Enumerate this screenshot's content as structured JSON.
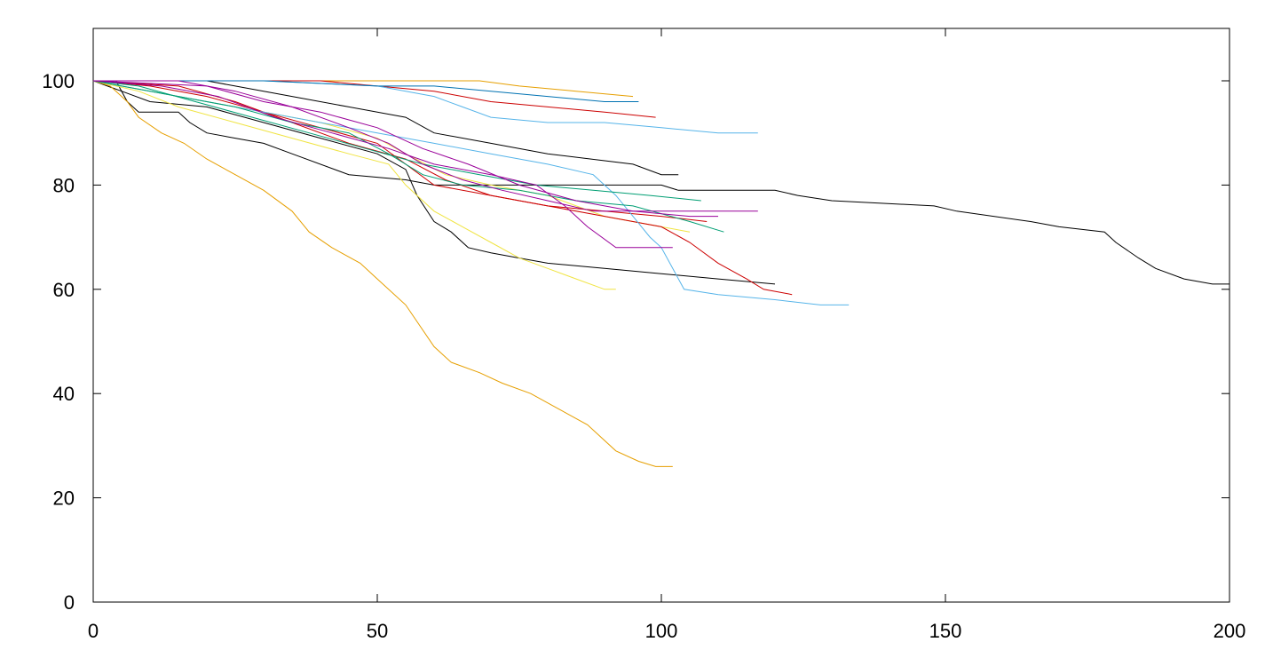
{
  "chart_data": {
    "type": "line",
    "title": "",
    "xlabel": "",
    "ylabel": "",
    "xlim": [
      0,
      200
    ],
    "ylim": [
      0,
      110
    ],
    "x_ticks": [
      "0",
      "50",
      "100",
      "150",
      "200"
    ],
    "x_tick_values": [
      0,
      50,
      100,
      150,
      200
    ],
    "y_ticks": [
      "0",
      "20",
      "40",
      "60",
      "80",
      "100"
    ],
    "y_tick_values": [
      0,
      20,
      40,
      60,
      80,
      100
    ],
    "grid": false,
    "legend": "none",
    "series": [
      {
        "color": "#000000",
        "points": [
          [
            0,
            100
          ],
          [
            4,
            100
          ],
          [
            6,
            96
          ],
          [
            8,
            94
          ],
          [
            15,
            94
          ],
          [
            17,
            92
          ],
          [
            20,
            90
          ],
          [
            25,
            89
          ],
          [
            30,
            88
          ],
          [
            35,
            86
          ],
          [
            45,
            82
          ],
          [
            55,
            81
          ],
          [
            60,
            80
          ],
          [
            75,
            80
          ],
          [
            80,
            80
          ],
          [
            95,
            80
          ],
          [
            100,
            80
          ],
          [
            103,
            79
          ],
          [
            120,
            79
          ],
          [
            124,
            78
          ],
          [
            130,
            77
          ],
          [
            148,
            76
          ],
          [
            152,
            75
          ],
          [
            165,
            73
          ],
          [
            170,
            72
          ],
          [
            178,
            71
          ],
          [
            180,
            69
          ],
          [
            184,
            66
          ],
          [
            187,
            64
          ],
          [
            192,
            62
          ],
          [
            197,
            61
          ],
          [
            200,
            61
          ]
        ]
      },
      {
        "color": "#000000",
        "points": [
          [
            0,
            100
          ],
          [
            5,
            98
          ],
          [
            10,
            96
          ],
          [
            20,
            95
          ],
          [
            30,
            92
          ],
          [
            40,
            89
          ],
          [
            50,
            86
          ],
          [
            55,
            83
          ],
          [
            57,
            78
          ],
          [
            60,
            73
          ],
          [
            63,
            71
          ],
          [
            66,
            68
          ],
          [
            70,
            67
          ],
          [
            75,
            66
          ],
          [
            80,
            65
          ],
          [
            90,
            64
          ],
          [
            100,
            63
          ],
          [
            110,
            62
          ],
          [
            120,
            61
          ]
        ]
      },
      {
        "color": "#000000",
        "points": [
          [
            0,
            100
          ],
          [
            20,
            100
          ],
          [
            25,
            99
          ],
          [
            35,
            97
          ],
          [
            45,
            95
          ],
          [
            55,
            93
          ],
          [
            60,
            90
          ],
          [
            70,
            88
          ],
          [
            80,
            86
          ],
          [
            95,
            84
          ],
          [
            100,
            82
          ],
          [
            103,
            82
          ]
        ]
      },
      {
        "color": "#e69f00",
        "points": [
          [
            0,
            100
          ],
          [
            3,
            99
          ],
          [
            6,
            96
          ],
          [
            8,
            93
          ],
          [
            12,
            90
          ],
          [
            16,
            88
          ],
          [
            20,
            85
          ],
          [
            25,
            82
          ],
          [
            30,
            79
          ],
          [
            35,
            75
          ],
          [
            38,
            71
          ],
          [
            42,
            68
          ],
          [
            47,
            65
          ],
          [
            50,
            62
          ],
          [
            55,
            57
          ],
          [
            60,
            49
          ],
          [
            63,
            46
          ],
          [
            68,
            44
          ],
          [
            72,
            42
          ],
          [
            77,
            40
          ],
          [
            82,
            37
          ],
          [
            87,
            34
          ],
          [
            92,
            29
          ],
          [
            96,
            27
          ],
          [
            99,
            26
          ],
          [
            102,
            26
          ]
        ]
      },
      {
        "color": "#e69f00",
        "points": [
          [
            0,
            100
          ],
          [
            30,
            100
          ],
          [
            50,
            100
          ],
          [
            60,
            100
          ],
          [
            68,
            100
          ],
          [
            75,
            99
          ],
          [
            85,
            98
          ],
          [
            95,
            97
          ]
        ]
      },
      {
        "color": "#f0e442",
        "points": [
          [
            0,
            100
          ],
          [
            8,
            98
          ],
          [
            15,
            95
          ],
          [
            25,
            92
          ],
          [
            35,
            89
          ],
          [
            45,
            86
          ],
          [
            52,
            84
          ],
          [
            55,
            80
          ],
          [
            60,
            75
          ],
          [
            65,
            72
          ],
          [
            70,
            69
          ],
          [
            75,
            66
          ],
          [
            80,
            64
          ],
          [
            85,
            62
          ],
          [
            90,
            60
          ],
          [
            92,
            60
          ]
        ]
      },
      {
        "color": "#f0e442",
        "points": [
          [
            0,
            100
          ],
          [
            10,
            98
          ],
          [
            20,
            96
          ],
          [
            30,
            94
          ],
          [
            40,
            92
          ],
          [
            50,
            89
          ],
          [
            55,
            86
          ],
          [
            62,
            82
          ],
          [
            70,
            80
          ],
          [
            80,
            78
          ],
          [
            90,
            74
          ],
          [
            100,
            72
          ],
          [
            105,
            71
          ]
        ]
      },
      {
        "color": "#cc0000",
        "points": [
          [
            0,
            100
          ],
          [
            10,
            99
          ],
          [
            20,
            97
          ],
          [
            30,
            94
          ],
          [
            40,
            91
          ],
          [
            50,
            88
          ],
          [
            55,
            84
          ],
          [
            60,
            80
          ],
          [
            70,
            78
          ],
          [
            80,
            76
          ],
          [
            90,
            74
          ],
          [
            100,
            72
          ],
          [
            105,
            69
          ],
          [
            110,
            65
          ],
          [
            115,
            62
          ],
          [
            118,
            60
          ],
          [
            123,
            59
          ]
        ]
      },
      {
        "color": "#cc0000",
        "points": [
          [
            0,
            100
          ],
          [
            20,
            100
          ],
          [
            40,
            100
          ],
          [
            50,
            99
          ],
          [
            60,
            98
          ],
          [
            70,
            96
          ],
          [
            80,
            95
          ],
          [
            90,
            94
          ],
          [
            99,
            93
          ]
        ]
      },
      {
        "color": "#cc0000",
        "points": [
          [
            0,
            100
          ],
          [
            15,
            99
          ],
          [
            25,
            96
          ],
          [
            35,
            92
          ],
          [
            45,
            88
          ],
          [
            55,
            85
          ],
          [
            62,
            81
          ],
          [
            70,
            78
          ],
          [
            80,
            76
          ],
          [
            90,
            75
          ],
          [
            100,
            74
          ],
          [
            108,
            73
          ]
        ]
      },
      {
        "color": "#56b4e9",
        "points": [
          [
            0,
            100
          ],
          [
            30,
            100
          ],
          [
            50,
            99
          ],
          [
            55,
            98
          ],
          [
            60,
            97
          ],
          [
            65,
            95
          ],
          [
            70,
            93
          ],
          [
            80,
            92
          ],
          [
            90,
            92
          ],
          [
            100,
            91
          ],
          [
            110,
            90
          ],
          [
            117,
            90
          ]
        ]
      },
      {
        "color": "#56b4e9",
        "points": [
          [
            0,
            100
          ],
          [
            10,
            98
          ],
          [
            20,
            96
          ],
          [
            30,
            94
          ],
          [
            40,
            92
          ],
          [
            50,
            90
          ],
          [
            60,
            88
          ],
          [
            70,
            86
          ],
          [
            80,
            84
          ],
          [
            88,
            82
          ],
          [
            92,
            78
          ],
          [
            95,
            74
          ],
          [
            98,
            70
          ],
          [
            100,
            68
          ],
          [
            102,
            64
          ],
          [
            104,
            60
          ],
          [
            110,
            59
          ],
          [
            120,
            58
          ],
          [
            128,
            57
          ],
          [
            133,
            57
          ]
        ]
      },
      {
        "color": "#0072b2",
        "points": [
          [
            0,
            100
          ],
          [
            30,
            100
          ],
          [
            50,
            99
          ],
          [
            60,
            99
          ],
          [
            70,
            98
          ],
          [
            80,
            97
          ],
          [
            90,
            96
          ],
          [
            96,
            96
          ]
        ]
      },
      {
        "color": "#009e73",
        "points": [
          [
            0,
            100
          ],
          [
            5,
            99
          ],
          [
            15,
            97
          ],
          [
            25,
            95
          ],
          [
            35,
            92
          ],
          [
            45,
            90
          ],
          [
            52,
            86
          ],
          [
            58,
            82
          ],
          [
            65,
            80
          ],
          [
            75,
            79
          ],
          [
            85,
            77
          ],
          [
            95,
            76
          ],
          [
            105,
            73
          ],
          [
            111,
            71
          ]
        ]
      },
      {
        "color": "#009e73",
        "points": [
          [
            0,
            100
          ],
          [
            8,
            99
          ],
          [
            18,
            96
          ],
          [
            28,
            93
          ],
          [
            38,
            90
          ],
          [
            48,
            87
          ],
          [
            58,
            84
          ],
          [
            68,
            82
          ],
          [
            78,
            80
          ],
          [
            88,
            79
          ],
          [
            98,
            78
          ],
          [
            107,
            77
          ]
        ]
      },
      {
        "color": "#990099",
        "points": [
          [
            0,
            100
          ],
          [
            15,
            100
          ],
          [
            25,
            98
          ],
          [
            35,
            95
          ],
          [
            45,
            91
          ],
          [
            52,
            88
          ],
          [
            58,
            84
          ],
          [
            65,
            81
          ],
          [
            72,
            79
          ],
          [
            80,
            77
          ],
          [
            88,
            75
          ],
          [
            95,
            75
          ],
          [
            105,
            75
          ],
          [
            117,
            75
          ]
        ]
      },
      {
        "color": "#990099",
        "points": [
          [
            0,
            100
          ],
          [
            12,
            99
          ],
          [
            22,
            97
          ],
          [
            32,
            93
          ],
          [
            42,
            90
          ],
          [
            52,
            87
          ],
          [
            60,
            84
          ],
          [
            70,
            82
          ],
          [
            78,
            80
          ],
          [
            83,
            76
          ],
          [
            87,
            72
          ],
          [
            92,
            68
          ],
          [
            97,
            68
          ],
          [
            102,
            68
          ]
        ]
      },
      {
        "color": "#990099",
        "points": [
          [
            0,
            100
          ],
          [
            20,
            99
          ],
          [
            30,
            96
          ],
          [
            40,
            94
          ],
          [
            50,
            91
          ],
          [
            58,
            87
          ],
          [
            66,
            84
          ],
          [
            75,
            80
          ],
          [
            85,
            77
          ],
          [
            95,
            75
          ],
          [
            105,
            74
          ],
          [
            110,
            74
          ]
        ]
      }
    ]
  }
}
